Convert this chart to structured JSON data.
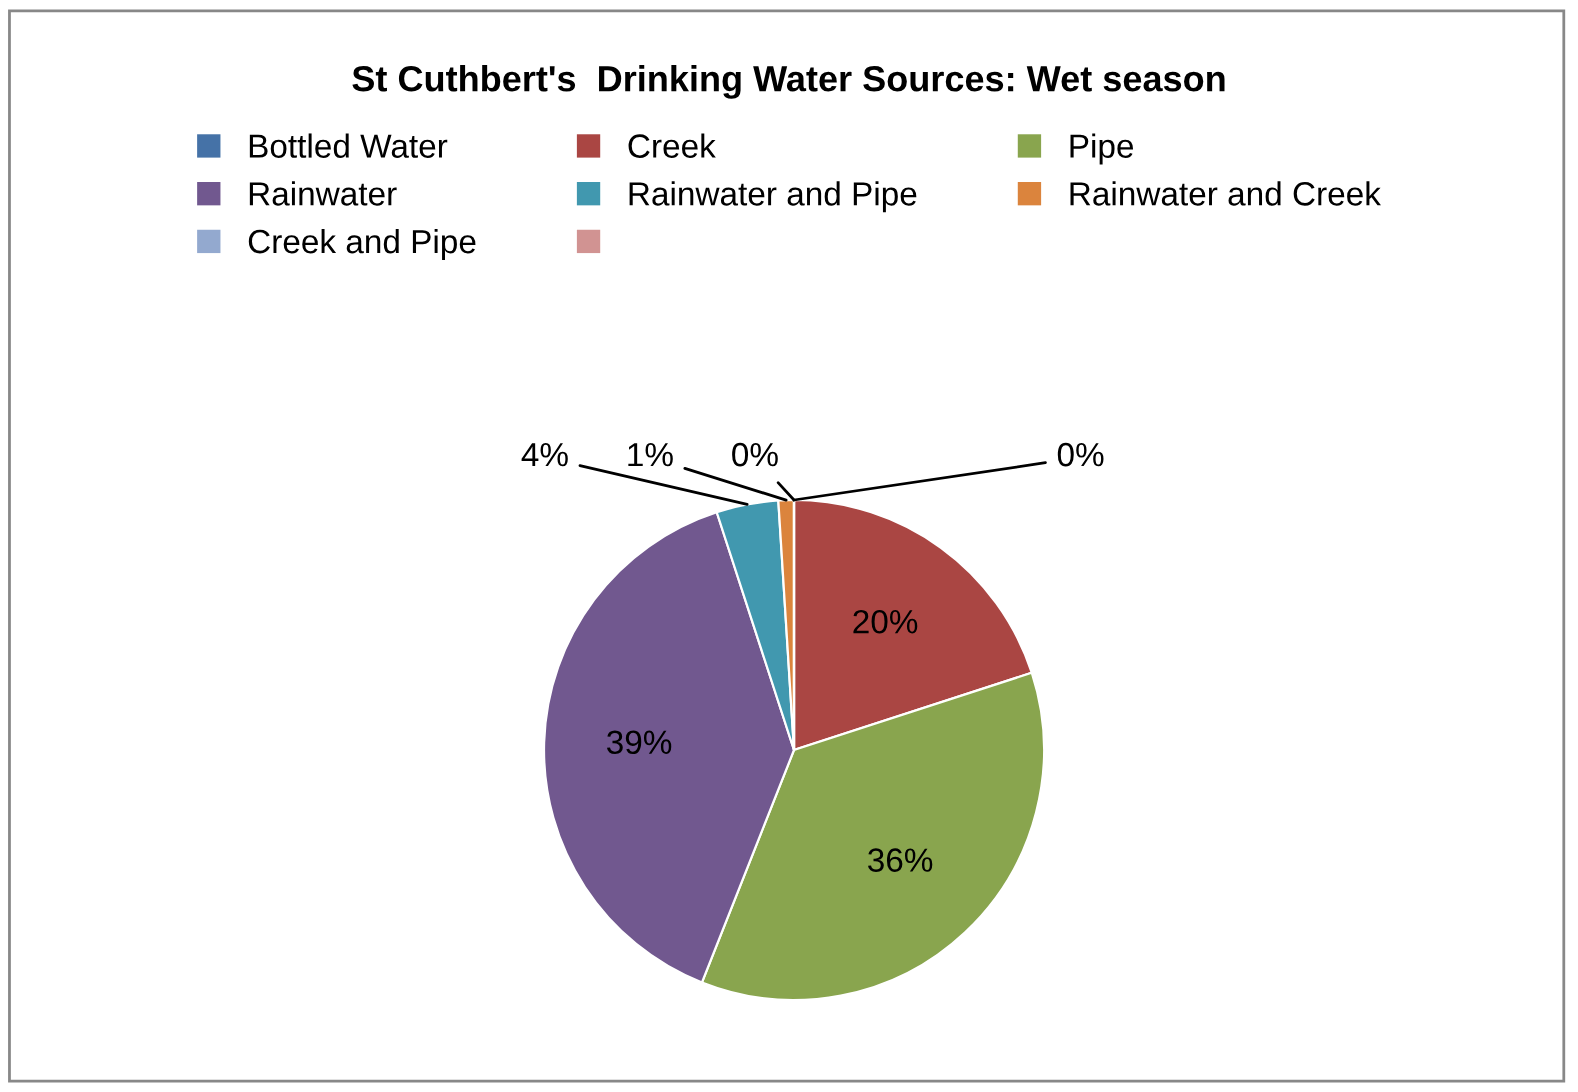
{
  "chart_data": {
    "type": "pie",
    "title": "St Cuthbert's  Drinking Water Sources: Wet season",
    "categories": [
      "Bottled Water",
      "Creek",
      "Pipe",
      "Rainwater",
      "Rainwater and Pipe",
      "Rainwater and Creek",
      "Creek and Pipe",
      null
    ],
    "values": [
      0,
      20,
      36,
      39,
      4,
      1,
      0,
      0
    ],
    "value_labels": [
      "0%",
      "20%",
      "36%",
      "39%",
      "4%",
      "1%",
      "0%",
      null
    ],
    "colors": [
      "#4572a7",
      "#aa4643",
      "#89a54e",
      "#71588f",
      "#4198af",
      "#db843d",
      "#93a9cf",
      "#d19392"
    ],
    "legend": "top"
  }
}
